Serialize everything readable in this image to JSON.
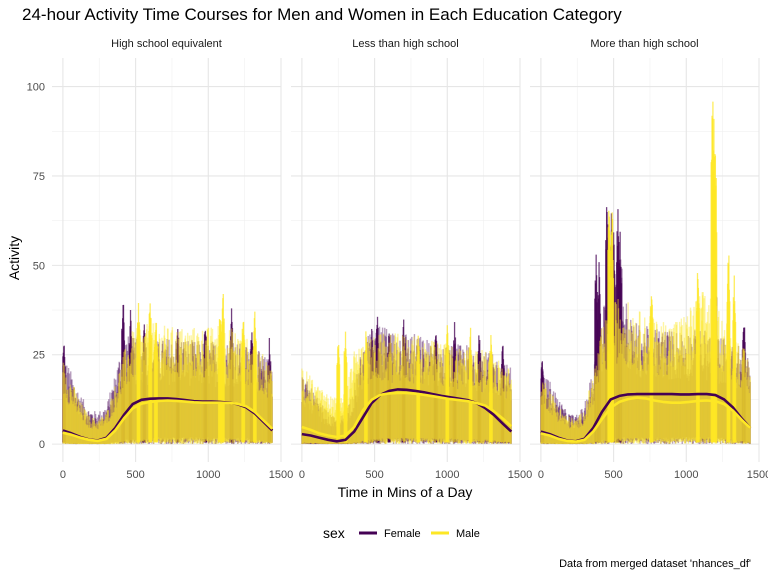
{
  "chart_data": {
    "type": "line",
    "title": "24-hour Activity Time Courses for Men and Women in Each Education Category",
    "xlabel": "Time in Mins of a Day",
    "ylabel": "Activity",
    "caption": "Data from merged dataset 'nhances_df'",
    "xlim": [
      0,
      1440
    ],
    "ylim": [
      0,
      105
    ],
    "x_ticks": [
      0,
      500,
      1000,
      1500
    ],
    "x_tick_labels": [
      "0",
      "500",
      "1000",
      "1500"
    ],
    "y_ticks": [
      0,
      25,
      50,
      75,
      100
    ],
    "y_tick_labels": [
      "0",
      "25",
      "50",
      "75",
      "100"
    ],
    "grid": true,
    "legend": {
      "title": "sex",
      "position": "bottom",
      "entries": [
        {
          "label": "Female",
          "color": "#440154"
        },
        {
          "label": "Male",
          "color": "#FDE725"
        }
      ]
    },
    "series_colors": {
      "Female": "#440154",
      "Male": "#FDE725"
    },
    "smooth_x": [
      0,
      60,
      120,
      180,
      240,
      300,
      360,
      420,
      480,
      540,
      600,
      660,
      720,
      780,
      840,
      900,
      960,
      1020,
      1080,
      1140,
      1200,
      1260,
      1320,
      1380,
      1440
    ],
    "panels": [
      {
        "facet": "High school equivalent",
        "smooth": [
          {
            "name": "Female",
            "values": [
              3.8,
              3.0,
              2.0,
              1.3,
              1.0,
              1.8,
              4.5,
              8.2,
              11.2,
              12.4,
              12.7,
              12.8,
              12.8,
              12.6,
              12.3,
              12.0,
              11.9,
              11.9,
              11.8,
              11.6,
              11.2,
              10.3,
              8.6,
              6.2,
              3.8
            ]
          },
          {
            "name": "Male",
            "values": [
              3.2,
              2.6,
              1.8,
              1.2,
              0.9,
              1.5,
              3.8,
              7.2,
              10.0,
              11.3,
              11.8,
              12.1,
              12.2,
              12.1,
              11.9,
              11.7,
              11.6,
              11.6,
              11.6,
              11.5,
              11.3,
              10.6,
              9.0,
              6.6,
              4.3
            ]
          }
        ],
        "band": [
          {
            "name": "Female",
            "upper": [
              26,
              20,
              14,
              10,
              9,
              11,
              20,
              31,
              30,
              29,
              30,
              29,
              30,
              30,
              30,
              29,
              29,
              29,
              29,
              29,
              29,
              28,
              27,
              25,
              23
            ],
            "lower": [
              0.5,
              0.3,
              0.2,
              0.1,
              0.1,
              0.2,
              0.6,
              1.2,
              1.6,
              1.8,
              1.9,
              2.0,
              2.0,
              2.0,
              2.0,
              2.0,
              2.0,
              2.0,
              2.0,
              2.0,
              2.0,
              1.8,
              1.5,
              1.0,
              0.6
            ]
          },
          {
            "name": "Male",
            "upper": [
              24,
              18,
              12,
              8,
              7,
              9,
              17,
              26,
              32,
              33,
              34,
              34,
              33,
              33,
              33,
              33,
              33,
              33,
              34,
              33,
              32,
              30,
              28,
              25,
              22
            ],
            "lower": [
              0.3,
              0.2,
              0.1,
              0.1,
              0.1,
              0.1,
              0.4,
              0.8,
              1.2,
              1.4,
              1.5,
              1.6,
              1.6,
              1.6,
              1.6,
              1.6,
              1.6,
              1.6,
              1.6,
              1.6,
              1.5,
              1.4,
              1.2,
              0.8,
              0.5
            ]
          }
        ],
        "peaks": [
          {
            "name": "Female",
            "points": [
              [
                6,
                30
              ],
              [
                414,
                43
              ],
              [
                465,
                38
              ],
              [
                560,
                36
              ],
              [
                790,
                35
              ],
              [
                980,
                36
              ],
              [
                1160,
                39
              ],
              [
                1300,
                35
              ],
              [
                1420,
                30
              ]
            ]
          },
          {
            "name": "Male",
            "points": [
              [
                520,
                42
              ],
              [
                600,
                44
              ],
              [
                640,
                37
              ],
              [
                1080,
                40
              ],
              [
                1100,
                46
              ],
              [
                1240,
                39
              ],
              [
                1320,
                38
              ]
            ]
          }
        ]
      },
      {
        "facet": "Less than high school",
        "smooth": [
          {
            "name": "Female",
            "values": [
              2.8,
              2.4,
              1.8,
              1.2,
              0.8,
              1.2,
              3.5,
              7.5,
              11.5,
              13.8,
              14.9,
              15.3,
              15.2,
              14.9,
              14.5,
              14.0,
              13.5,
              13.1,
              12.7,
              12.3,
              11.5,
              10.1,
              8.2,
              5.8,
              3.5
            ]
          },
          {
            "name": "Male",
            "values": [
              4.8,
              4.0,
              3.0,
              2.4,
              2.0,
              2.4,
              4.8,
              9.5,
              12.4,
              13.8,
              14.2,
              14.3,
              14.3,
              14.1,
              13.8,
              13.4,
              13.0,
              12.6,
              12.3,
              12.0,
              11.5,
              10.8,
              9.2,
              7.2,
              5.0
            ]
          }
        ],
        "band": [
          {
            "name": "Female",
            "upper": [
              20,
              16,
              12,
              9,
              7,
              9,
              17,
              28,
              32,
              33,
              33,
              32,
              32,
              31,
              30,
              29,
              28,
              28,
              28,
              28,
              27,
              26,
              25,
              23,
              22
            ],
            "lower": [
              0.2,
              0.1,
              0.1,
              0.1,
              0.1,
              0.1,
              0.3,
              0.6,
              1.0,
              1.3,
              1.5,
              1.6,
              1.6,
              1.6,
              1.5,
              1.5,
              1.4,
              1.4,
              1.3,
              1.3,
              1.2,
              1.0,
              0.8,
              0.5,
              0.3
            ]
          },
          {
            "name": "Male",
            "upper": [
              22,
              19,
              16,
              14,
              13,
              15,
              26,
              29,
              30,
              31,
              31,
              31,
              31,
              30,
              30,
              29,
              29,
              28,
              28,
              28,
              27,
              26,
              25,
              23,
              21
            ],
            "lower": [
              0.5,
              0.4,
              0.3,
              0.2,
              0.2,
              0.2,
              0.5,
              1.0,
              1.4,
              1.6,
              1.7,
              1.8,
              1.8,
              1.8,
              1.7,
              1.7,
              1.6,
              1.6,
              1.5,
              1.5,
              1.4,
              1.3,
              1.1,
              0.8,
              0.6
            ]
          }
        ],
        "peaks": [
          {
            "name": "Female",
            "points": [
              [
                480,
                35
              ],
              [
                520,
                38
              ],
              [
                600,
                34
              ],
              [
                700,
                36
              ],
              [
                920,
                34
              ],
              [
                1050,
                35
              ],
              [
                1220,
                33
              ],
              [
                1380,
                30
              ]
            ]
          },
          {
            "name": "Male",
            "points": [
              [
                250,
                31
              ],
              [
                300,
                33
              ],
              [
                440,
                33
              ],
              [
                800,
                33
              ],
              [
                1000,
                34
              ],
              [
                1160,
                33
              ],
              [
                1300,
                32
              ]
            ]
          }
        ]
      },
      {
        "facet": "More than high school",
        "smooth": [
          {
            "name": "Female",
            "values": [
              3.5,
              2.8,
              1.8,
              1.0,
              0.8,
              1.5,
              4.5,
              9.0,
              12.5,
              13.5,
              13.9,
              14.0,
              14.0,
              14.0,
              14.0,
              14.0,
              13.9,
              13.9,
              14.0,
              14.0,
              13.7,
              12.5,
              10.3,
              7.2,
              4.5
            ]
          },
          {
            "name": "Male",
            "values": [
              3.0,
              2.4,
              1.5,
              0.9,
              0.7,
              1.2,
              3.5,
              7.0,
              10.2,
              11.8,
              12.6,
              13.0,
              12.8,
              12.2,
              11.8,
              11.6,
              11.6,
              11.8,
              12.1,
              12.2,
              12.0,
              11.2,
              9.4,
              6.8,
              4.5
            ]
          }
        ],
        "band": [
          {
            "name": "Female",
            "upper": [
              22,
              18,
              13,
              9,
              8,
              11,
              22,
              36,
              52,
              58,
              36,
              34,
              33,
              33,
              33,
              32,
              32,
              32,
              32,
              32,
              31,
              30,
              29,
              27,
              25
            ],
            "lower": [
              0.4,
              0.3,
              0.2,
              0.1,
              0.1,
              0.2,
              0.6,
              1.3,
              1.8,
              2.0,
              2.0,
              2.0,
              2.0,
              2.0,
              2.0,
              2.0,
              2.0,
              2.0,
              2.0,
              2.0,
              1.9,
              1.8,
              1.5,
              1.0,
              0.6
            ]
          },
          {
            "name": "Male",
            "upper": [
              20,
              16,
              11,
              8,
              7,
              10,
              20,
              33,
              38,
              42,
              40,
              38,
              36,
              35,
              35,
              35,
              36,
              38,
              42,
              44,
              40,
              36,
              32,
              28,
              24
            ],
            "lower": [
              0.3,
              0.2,
              0.1,
              0.1,
              0.1,
              0.2,
              0.5,
              1.0,
              1.4,
              1.6,
              1.7,
              1.8,
              1.8,
              1.7,
              1.6,
              1.6,
              1.6,
              1.6,
              1.7,
              1.7,
              1.6,
              1.5,
              1.3,
              0.9,
              0.6
            ]
          }
        ],
        "peaks": [
          {
            "name": "Female",
            "points": [
              [
                10,
                25
              ],
              [
                380,
                54
              ],
              [
                400,
                51
              ],
              [
                455,
                73
              ],
              [
                485,
                67
              ],
              [
                500,
                62
              ],
              [
                530,
                70
              ],
              [
                545,
                60
              ],
              [
                1200,
                56
              ],
              [
                1395,
                38
              ]
            ]
          },
          {
            "name": "Male",
            "points": [
              [
                470,
                73
              ],
              [
                490,
                69
              ],
              [
                760,
                47
              ],
              [
                1080,
                52
              ],
              [
                1180,
                104
              ],
              [
                1190,
                95
              ],
              [
                1200,
                88
              ],
              [
                1290,
                58
              ],
              [
                1330,
                48
              ]
            ]
          }
        ]
      }
    ]
  }
}
